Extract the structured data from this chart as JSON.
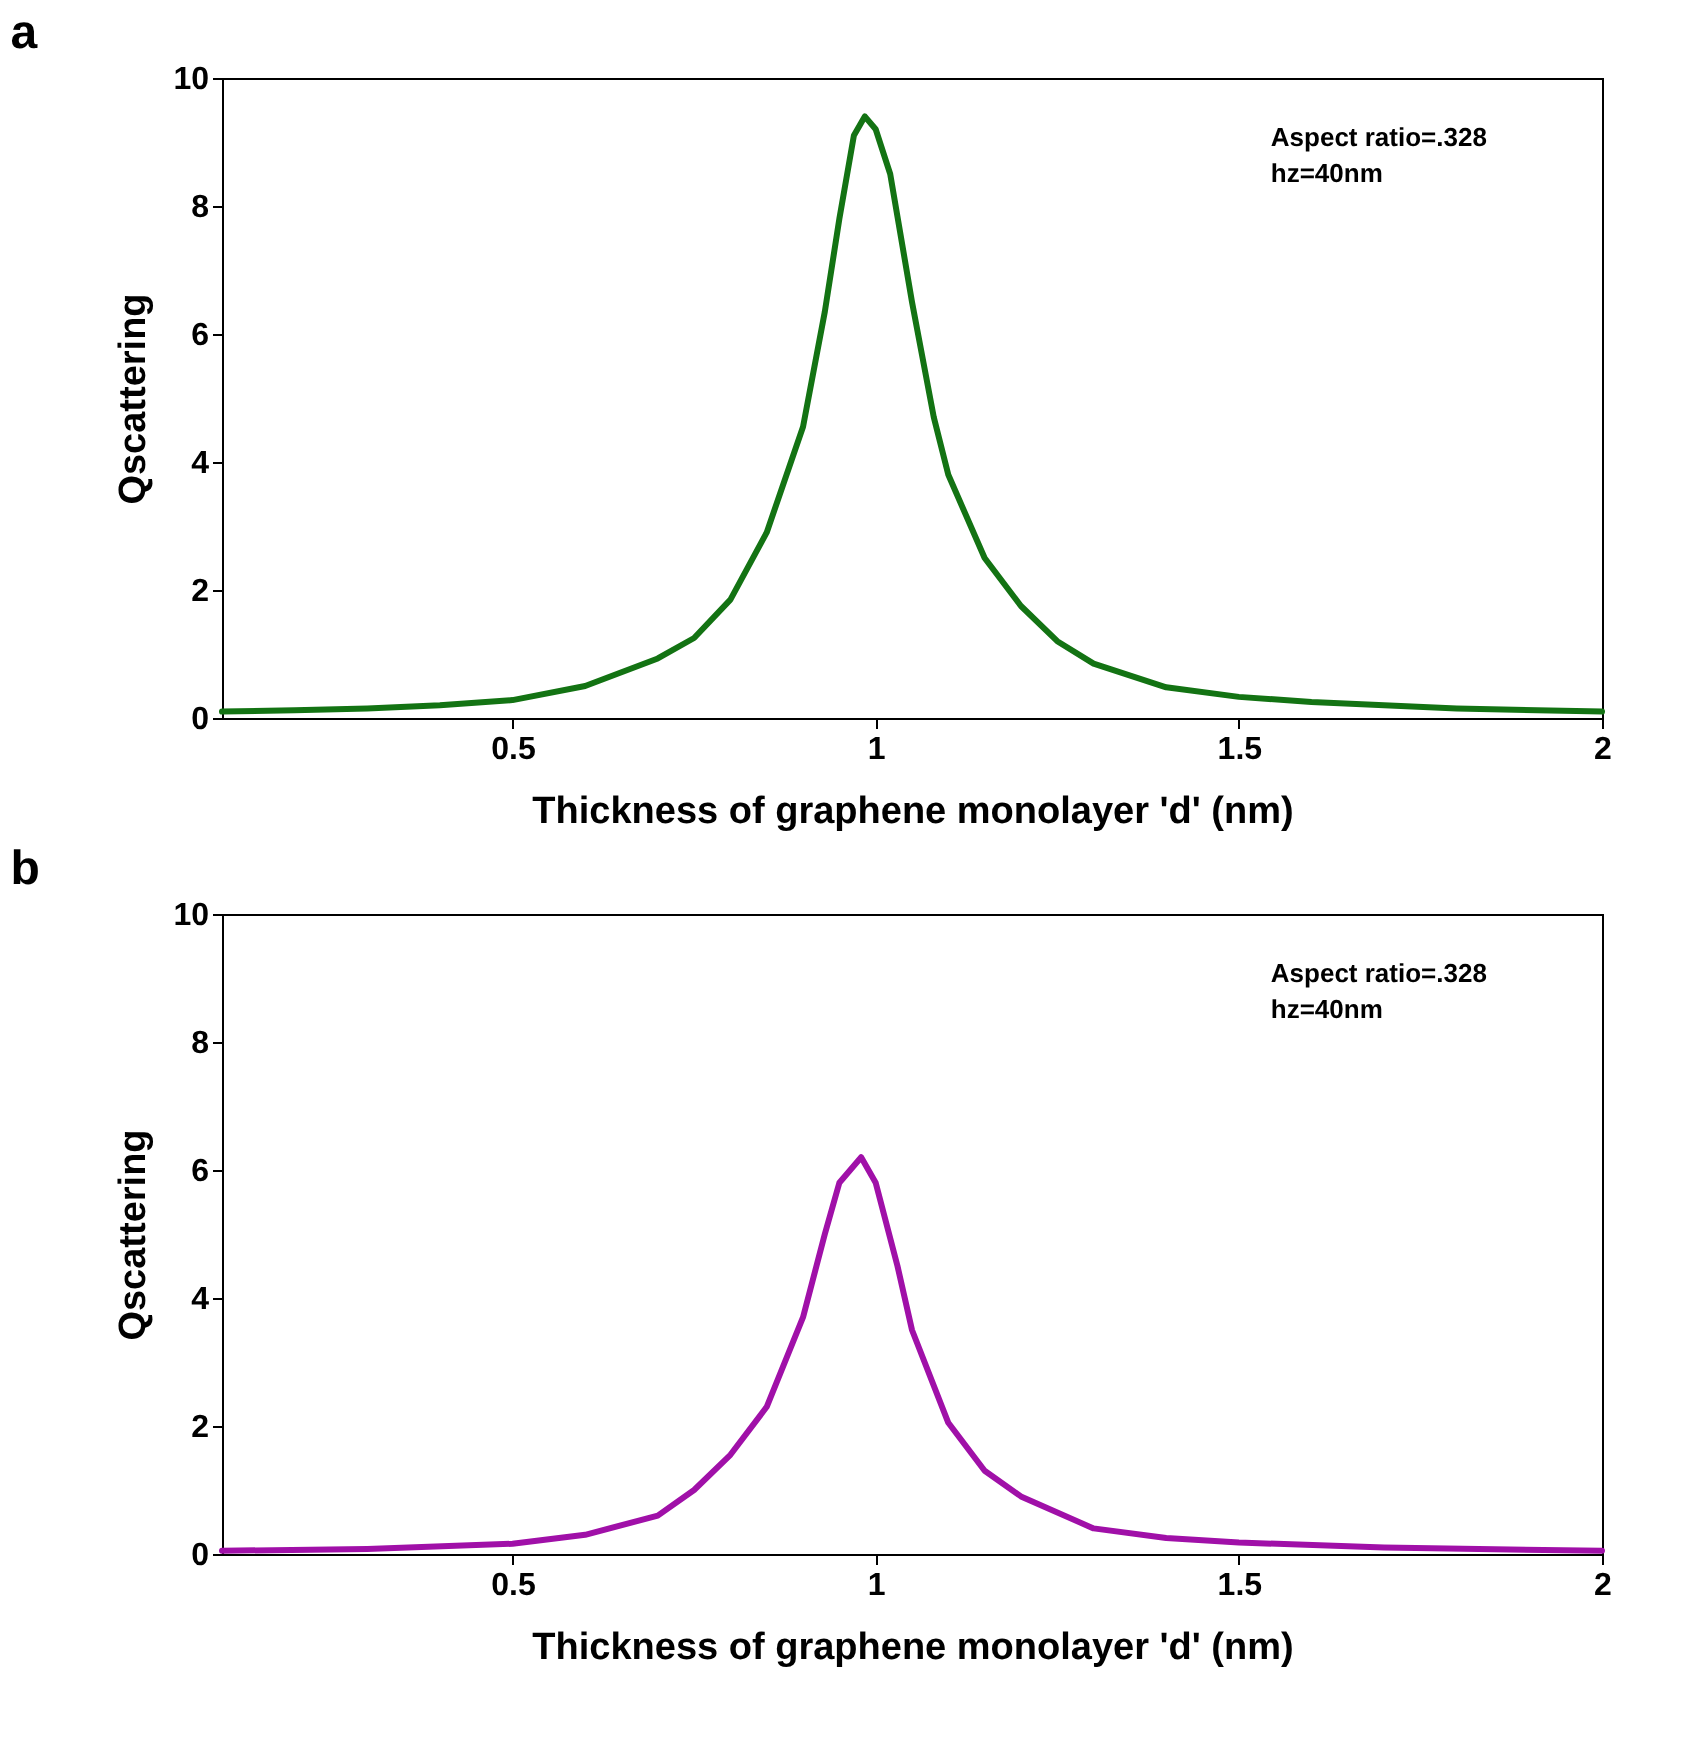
{
  "chart_data": [
    {
      "type": "line",
      "title": "a",
      "xlabel": "Thickness of graphene monolayer 'd' (nm)",
      "ylabel": "Qscattering",
      "annotations": [
        "Aspect ratio=.328",
        "hz=40nm"
      ],
      "xlim": [
        0.1,
        2
      ],
      "xticks": [
        0.5,
        1,
        1.5,
        2
      ],
      "ylim": [
        0,
        10
      ],
      "yticks": [
        0,
        2,
        4,
        6,
        8,
        10
      ],
      "grid": false,
      "line_style": "solid",
      "series": [
        {
          "color": "#137313",
          "x": [
            0.1,
            0.2,
            0.3,
            0.4,
            0.5,
            0.6,
            0.7,
            0.75,
            0.8,
            0.85,
            0.9,
            0.93,
            0.95,
            0.97,
            0.985,
            1.0,
            1.02,
            1.05,
            1.08,
            1.1,
            1.15,
            1.2,
            1.25,
            1.3,
            1.4,
            1.5,
            1.6,
            1.8,
            2.0
          ],
          "values": [
            0.1,
            0.12,
            0.15,
            0.2,
            0.28,
            0.5,
            0.93,
            1.25,
            1.85,
            2.9,
            4.55,
            6.35,
            7.8,
            9.1,
            9.4,
            9.2,
            8.5,
            6.5,
            4.7,
            3.8,
            2.5,
            1.75,
            1.2,
            0.85,
            0.48,
            0.33,
            0.25,
            0.15,
            0.1
          ]
        }
      ]
    },
    {
      "type": "line",
      "title": "b",
      "xlabel": "Thickness of graphene monolayer 'd' (nm)",
      "ylabel": "Qscattering",
      "annotations": [
        "Aspect ratio=.328",
        "hz=40nm"
      ],
      "xlim": [
        0.1,
        2
      ],
      "xticks": [
        0.5,
        1,
        1.5,
        2
      ],
      "ylim": [
        0,
        10
      ],
      "yticks": [
        0,
        2,
        4,
        6,
        8,
        10
      ],
      "grid": false,
      "line_style": "solid",
      "series": [
        {
          "color": "#a010a8",
          "x": [
            0.1,
            0.3,
            0.5,
            0.6,
            0.7,
            0.75,
            0.8,
            0.85,
            0.9,
            0.93,
            0.95,
            0.98,
            1.0,
            1.03,
            1.05,
            1.1,
            1.15,
            1.2,
            1.3,
            1.4,
            1.5,
            1.7,
            2.0
          ],
          "values": [
            0.05,
            0.08,
            0.16,
            0.3,
            0.6,
            1.0,
            1.55,
            2.3,
            3.7,
            5.0,
            5.8,
            6.2,
            5.8,
            4.5,
            3.5,
            2.05,
            1.3,
            0.9,
            0.4,
            0.25,
            0.18,
            0.1,
            0.05
          ]
        }
      ]
    }
  ]
}
